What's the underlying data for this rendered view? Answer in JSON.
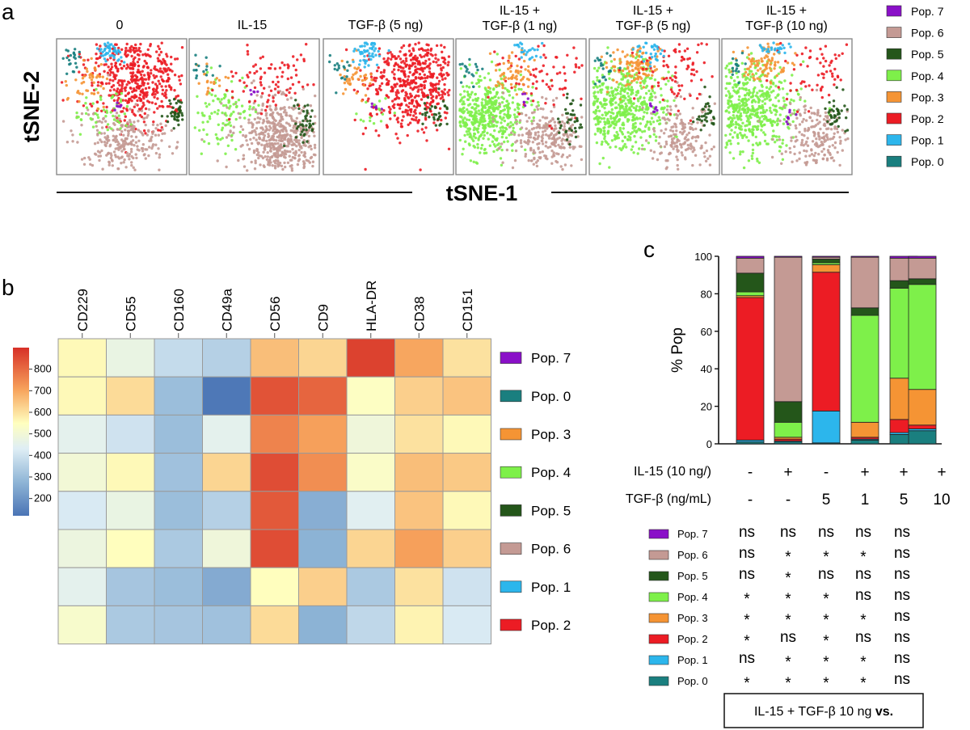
{
  "panel_letters": {
    "a": "a",
    "b": "b",
    "c": "c"
  },
  "colors": {
    "Pop. 7": "#8a10c8",
    "Pop. 6": "#c49a94",
    "Pop. 5": "#24561a",
    "Pop. 4": "#7ef04a",
    "Pop. 3": "#f59434",
    "Pop. 2": "#ec1c24",
    "Pop. 1": "#2cb6ec",
    "Pop. 0": "#1a7f7f"
  },
  "chart_data": [
    {
      "type": "scatter",
      "ylabel": "tSNE-2",
      "xlabel": "tSNE-1",
      "conditions": [
        {
          "label_lines": [
            "0"
          ]
        },
        {
          "label_lines": [
            "IL-15"
          ]
        },
        {
          "label_lines": [
            "TGF-β (5 ng)"
          ]
        },
        {
          "label_lines": [
            "IL-15 +",
            "TGF-β (1 ng)"
          ]
        },
        {
          "label_lines": [
            "IL-15 +",
            "TGF-β (5 ng)"
          ]
        },
        {
          "label_lines": [
            "IL-15 +",
            "TGF-β (10 ng)"
          ]
        }
      ],
      "legend": [
        "Pop. 7",
        "Pop. 6",
        "Pop. 5",
        "Pop. 4",
        "Pop. 3",
        "Pop. 2",
        "Pop. 1",
        "Pop. 0"
      ]
    },
    {
      "type": "heatmap",
      "columns": [
        "CD229",
        "CD55",
        "CD160",
        "CD49a",
        "CD56",
        "CD9",
        "HLA-DR",
        "CD38",
        "CD151"
      ],
      "rows": [
        "Pop. 7",
        "Pop. 0",
        "Pop. 3",
        "Pop. 4",
        "Pop. 5",
        "Pop. 6",
        "Pop. 1",
        "Pop. 2"
      ],
      "colorbar_ticks": [
        800,
        700,
        600,
        500,
        400,
        300,
        200
      ],
      "colorbar_range": [
        120,
        900
      ],
      "values": [
        [
          560,
          470,
          380,
          350,
          660,
          620,
          870,
          700,
          600
        ],
        [
          560,
          610,
          300,
          130,
          840,
          810,
          540,
          630,
          650
        ],
        [
          450,
          400,
          300,
          450,
          760,
          710,
          490,
          600,
          560
        ],
        [
          500,
          560,
          310,
          620,
          850,
          740,
          530,
          660,
          640
        ],
        [
          420,
          470,
          300,
          350,
          830,
          260,
          440,
          650,
          560
        ],
        [
          480,
          550,
          330,
          490,
          850,
          270,
          620,
          710,
          630
        ],
        [
          450,
          320,
          300,
          250,
          550,
          630,
          330,
          600,
          400
        ],
        [
          520,
          330,
          320,
          310,
          610,
          270,
          370,
          570,
          420
        ]
      ]
    },
    {
      "type": "bar",
      "stacked": true,
      "ylabel": "% Pop",
      "ylim": [
        0,
        100
      ],
      "yticks": [
        0,
        20,
        40,
        60,
        80,
        100
      ],
      "condition_rows": [
        {
          "label": "IL-15 (10 ng/)",
          "values": [
            "-",
            "+",
            "-",
            "+",
            "+",
            "+"
          ]
        },
        {
          "label": "TGF-β (ng/mL)",
          "values": [
            "-",
            "-",
            "5",
            "1",
            "5",
            "10"
          ]
        }
      ],
      "series": [
        {
          "name": "Pop. 0",
          "values": [
            1,
            1,
            0.5,
            2,
            5,
            7
          ]
        },
        {
          "name": "Pop. 1",
          "values": [
            1,
            0.5,
            17,
            0.5,
            1,
            1
          ]
        },
        {
          "name": "Pop. 2",
          "values": [
            76,
            1,
            74,
            1,
            7,
            2
          ]
        },
        {
          "name": "Pop. 3",
          "values": [
            1,
            1,
            4,
            8,
            22,
            19
          ]
        },
        {
          "name": "Pop. 4",
          "values": [
            2,
            8,
            1,
            57,
            48,
            56
          ]
        },
        {
          "name": "Pop. 5",
          "values": [
            10,
            11,
            2,
            4,
            4,
            3
          ]
        },
        {
          "name": "Pop. 6",
          "values": [
            8,
            77,
            1,
            27,
            12,
            11
          ]
        },
        {
          "name": "Pop. 7",
          "values": [
            1,
            0.5,
            0.5,
            0.5,
            1,
            1
          ]
        }
      ]
    },
    {
      "type": "table",
      "caption": "IL-15 + TGF-β 10 ng",
      "caption_bold": "vs.",
      "rows": [
        {
          "name": "Pop. 7",
          "cells": [
            "ns",
            "ns",
            "ns",
            "ns",
            "ns"
          ]
        },
        {
          "name": "Pop. 6",
          "cells": [
            "ns",
            "*",
            "*",
            "*",
            "ns"
          ]
        },
        {
          "name": "Pop. 5",
          "cells": [
            "ns",
            "*",
            "ns",
            "ns",
            "ns"
          ]
        },
        {
          "name": "Pop. 4",
          "cells": [
            "*",
            "*",
            "*",
            "ns",
            "ns"
          ]
        },
        {
          "name": "Pop. 3",
          "cells": [
            "*",
            "*",
            "*",
            "*",
            "ns"
          ]
        },
        {
          "name": "Pop. 2",
          "cells": [
            "*",
            "ns",
            "*",
            "ns",
            "ns"
          ]
        },
        {
          "name": "Pop. 1",
          "cells": [
            "ns",
            "*",
            "*",
            "*",
            "ns"
          ]
        },
        {
          "name": "Pop. 0",
          "cells": [
            "*",
            "*",
            "*",
            "*",
            "ns"
          ]
        }
      ]
    }
  ]
}
